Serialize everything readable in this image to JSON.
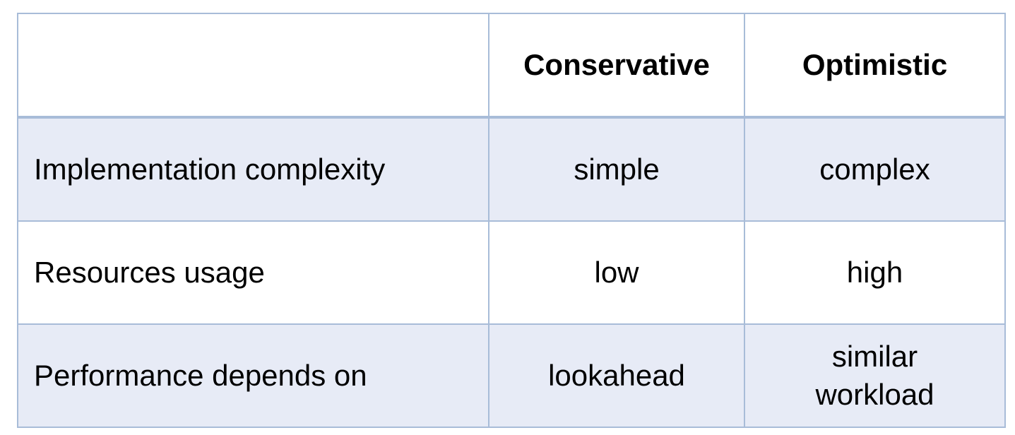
{
  "table": {
    "headers": [
      "",
      "Conservative",
      "Optimistic"
    ],
    "rows": [
      {
        "label": "Implementation complexity",
        "conservative": "simple",
        "optimistic": "complex"
      },
      {
        "label": "Resources usage",
        "conservative": "low",
        "optimistic": "high"
      },
      {
        "label": "Performance depends on",
        "conservative": "lookahead",
        "optimistic_lines": [
          "similar",
          "workload"
        ]
      }
    ]
  },
  "colors": {
    "border": "#a8bcd8",
    "shaded_row": "#e7ebf6",
    "plain_row": "#ffffff"
  }
}
